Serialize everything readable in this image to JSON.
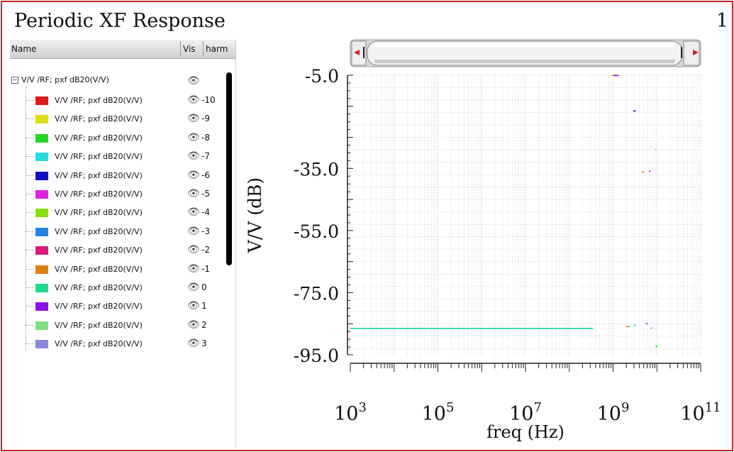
{
  "window": {
    "title": "Periodic XF Response",
    "page_number": "1"
  },
  "legend_panel": {
    "columns": {
      "name": "Name",
      "vis": "Vis",
      "harm": "harm"
    },
    "parent": {
      "label": "V/V /RF; pxf dB20(V/V)"
    },
    "items": [
      {
        "label": "V/V /RF; pxf dB20(V/V)",
        "harm": "-10",
        "color": "#e01818"
      },
      {
        "label": "V/V /RF; pxf dB20(V/V)",
        "harm": "-9",
        "color": "#dede10"
      },
      {
        "label": "V/V /RF; pxf dB20(V/V)",
        "harm": "-8",
        "color": "#22d822"
      },
      {
        "label": "V/V /RF; pxf dB20(V/V)",
        "harm": "-7",
        "color": "#22dede"
      },
      {
        "label": "V/V /RF; pxf dB20(V/V)",
        "harm": "-6",
        "color": "#1010c8"
      },
      {
        "label": "V/V /RF; pxf dB20(V/V)",
        "harm": "-5",
        "color": "#e020e0"
      },
      {
        "label": "V/V /RF; pxf dB20(V/V)",
        "harm": "-4",
        "color": "#88e010"
      },
      {
        "label": "V/V /RF; pxf dB20(V/V)",
        "harm": "-3",
        "color": "#1e88e0"
      },
      {
        "label": "V/V /RF; pxf dB20(V/V)",
        "harm": "-2",
        "color": "#e01880"
      },
      {
        "label": "V/V /RF; pxf dB20(V/V)",
        "harm": "-1",
        "color": "#e08010"
      },
      {
        "label": "V/V /RF; pxf dB20(V/V)",
        "harm": "0",
        "color": "#20d890"
      },
      {
        "label": "V/V /RF; pxf dB20(V/V)",
        "harm": "1",
        "color": "#8a10f0"
      },
      {
        "label": "V/V /RF; pxf dB20(V/V)",
        "harm": "2",
        "color": "#80e080"
      },
      {
        "label": "V/V /RF; pxf dB20(V/V)",
        "harm": "3",
        "color": "#8888e0"
      }
    ]
  },
  "chart_data": {
    "type": "line",
    "title": "",
    "xlabel": "freq (Hz)",
    "ylabel": "V/V (dB)",
    "x_scale": "log",
    "xlim": [
      1000,
      100000000000
    ],
    "ylim": [
      -95,
      -5
    ],
    "y_ticks": [
      "-5.0",
      "-35.0",
      "-55.0",
      "-75.0",
      "-95.0"
    ],
    "x_tick_bases": [
      "10",
      "10",
      "10",
      "10",
      "10"
    ],
    "x_tick_exps": [
      "3",
      "5",
      "7",
      "9",
      "11"
    ],
    "grid": true,
    "series": [
      {
        "harm": "-10",
        "color": "#e01818",
        "x": [
          2000000000,
          2400000000
        ],
        "y": [
          -86,
          -85.8
        ]
      },
      {
        "harm": "-9",
        "color": "#dede10",
        "x": [
          900000000,
          1200000000
        ],
        "y": [
          -5,
          -5
        ]
      },
      {
        "harm": "-8",
        "color": "#22d822",
        "x": [
          9500000000,
          10000000000
        ],
        "y": [
          -92,
          -92.5
        ]
      },
      {
        "harm": "-7",
        "color": "#22dede",
        "x": [
          3000000000,
          3300000000
        ],
        "y": [
          -85.5,
          -85.4
        ]
      },
      {
        "harm": "-6",
        "color": "#1010c8",
        "x": [
          2900000000,
          3300000000
        ],
        "y": [
          -16.5,
          -16.5
        ]
      },
      {
        "harm": "-5",
        "color": "#e020e0",
        "x": [
          1000000000,
          1250000000
        ],
        "y": [
          -5.05,
          -5.05
        ]
      },
      {
        "harm": "-4",
        "color": "#88e010",
        "x": [
          9000000000,
          9800000000
        ],
        "y": [
          -29,
          -29
        ]
      },
      {
        "harm": "-3",
        "color": "#1e88e0",
        "x": [
          5500000000,
          6200000000
        ],
        "y": [
          -85,
          -85
        ]
      },
      {
        "harm": "-2",
        "color": "#e01880",
        "x": [
          6500000000,
          7200000000
        ],
        "y": [
          -36,
          -35.8
        ]
      },
      {
        "harm": "-1",
        "color": "#e08010",
        "x": [
          4500000000,
          5100000000
        ],
        "y": [
          -36.3,
          -36.1
        ]
      },
      {
        "harm": "0",
        "color": "#20d890",
        "x": [
          1000,
          350000000
        ],
        "y": [
          -86.5,
          -86.5
        ]
      },
      {
        "harm": "1",
        "color": "#8a10f0",
        "x": [
          1050000000,
          1350000000
        ],
        "y": [
          -5.1,
          -5.1
        ]
      },
      {
        "harm": "2",
        "color": "#80e080",
        "x": [
          2100000000,
          2500000000
        ],
        "y": [
          -86,
          -85.9
        ]
      },
      {
        "harm": "3",
        "color": "#8888e0",
        "x": [
          7200000000,
          7800000000
        ],
        "y": [
          -86.5,
          -86.3
        ]
      }
    ]
  }
}
